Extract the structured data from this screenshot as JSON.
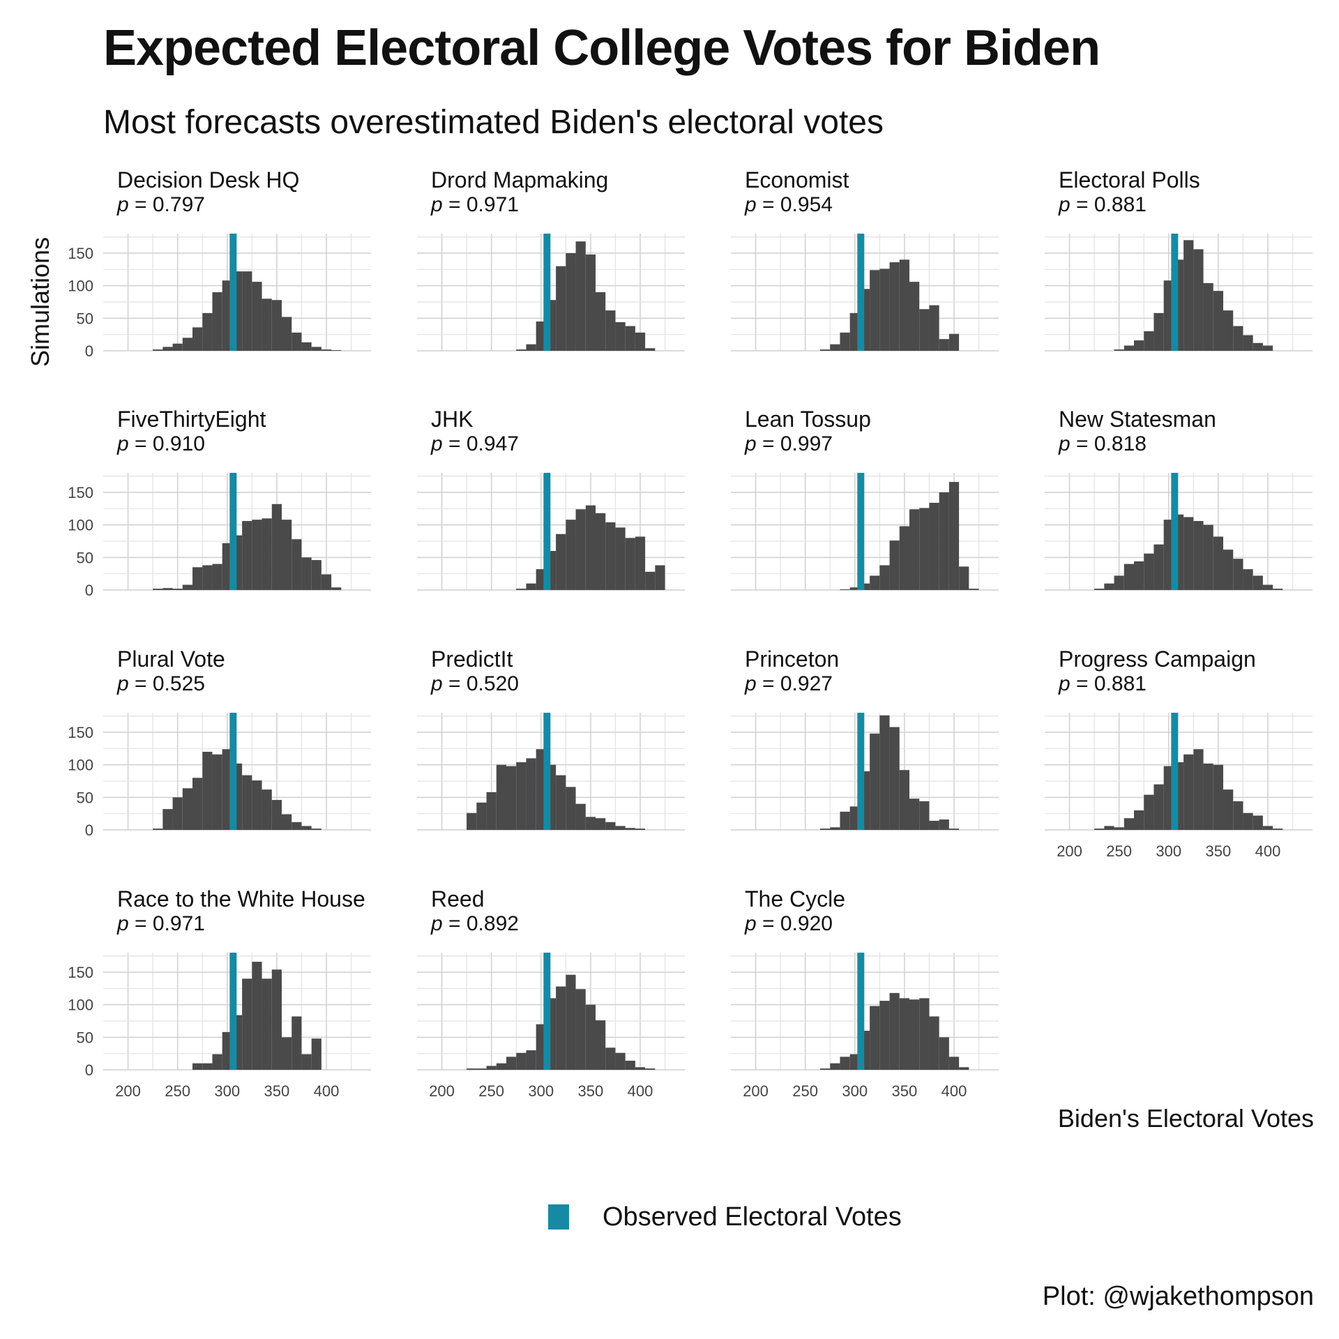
{
  "chart_data": {
    "type": "bar",
    "title": "Expected Electoral College Votes for Biden",
    "subtitle": "Most forecasts overestimated Biden's electoral votes",
    "xlabel": "Biden's Electoral Votes",
    "ylabel": "Simulations",
    "xlim": [
      175,
      445
    ],
    "ylim": [
      0,
      180
    ],
    "xticks": [
      200,
      250,
      300,
      350,
      400
    ],
    "yticks": [
      0,
      50,
      100,
      150
    ],
    "bin_width": 10,
    "bin_start": 225,
    "observed_value": 306,
    "grid": true,
    "legend": {
      "position": "bottom",
      "label": "Observed Electoral Votes",
      "color": "#168aa4"
    },
    "bar_color": "#4a4a4a",
    "caption": "Plot: @wjakethompson",
    "panels": [
      {
        "name": "Decision Desk HQ",
        "p_value": "0.797",
        "values": [
          2,
          6,
          11,
          20,
          36,
          58,
          90,
          108,
          122,
          122,
          106,
          80,
          78,
          52,
          28,
          13,
          6,
          2,
          1,
          0
        ]
      },
      {
        "name": "Drord Mapmaking",
        "p_value": "0.971",
        "values": [
          0,
          0,
          0,
          0,
          0,
          2,
          10,
          45,
          78,
          130,
          150,
          168,
          148,
          90,
          62,
          44,
          38,
          28,
          4,
          0
        ]
      },
      {
        "name": "Economist",
        "p_value": "0.954",
        "values": [
          0,
          0,
          0,
          0,
          2,
          10,
          28,
          58,
          95,
          124,
          126,
          136,
          140,
          106,
          64,
          70,
          18,
          26,
          0,
          0
        ]
      },
      {
        "name": "Electoral Polls",
        "p_value": "0.881",
        "values": [
          0,
          0,
          2,
          8,
          16,
          30,
          58,
          108,
          140,
          170,
          156,
          104,
          92,
          62,
          38,
          24,
          12,
          8,
          0,
          0
        ]
      },
      {
        "name": "FiveThirtyEight",
        "p_value": "0.910",
        "values": [
          2,
          3,
          2,
          8,
          35,
          38,
          40,
          72,
          84,
          106,
          108,
          110,
          132,
          108,
          78,
          50,
          46,
          24,
          4,
          0
        ]
      },
      {
        "name": "JHK",
        "p_value": "0.947",
        "values": [
          0,
          0,
          0,
          0,
          0,
          2,
          10,
          32,
          60,
          86,
          108,
          124,
          130,
          118,
          104,
          96,
          80,
          82,
          28,
          38
        ]
      },
      {
        "name": "Lean Tossup",
        "p_value": "0.997",
        "values": [
          0,
          0,
          0,
          0,
          0,
          0,
          1,
          4,
          10,
          22,
          38,
          76,
          98,
          124,
          126,
          134,
          150,
          166,
          36,
          2
        ]
      },
      {
        "name": "New Statesman",
        "p_value": "0.818",
        "values": [
          2,
          10,
          22,
          40,
          44,
          56,
          70,
          108,
          116,
          112,
          106,
          100,
          82,
          62,
          48,
          32,
          22,
          8,
          2,
          0
        ]
      },
      {
        "name": "Plural Vote",
        "p_value": "0.525",
        "values": [
          2,
          32,
          50,
          64,
          80,
          120,
          116,
          124,
          102,
          84,
          76,
          62,
          46,
          24,
          12,
          6,
          2,
          0,
          0,
          0
        ]
      },
      {
        "name": "PredictIt",
        "p_value": "0.520",
        "values": [
          26,
          42,
          58,
          100,
          98,
          104,
          110,
          124,
          100,
          84,
          66,
          40,
          20,
          18,
          12,
          6,
          3,
          2,
          0,
          0
        ]
      },
      {
        "name": "Princeton",
        "p_value": "0.927",
        "values": [
          0,
          0,
          0,
          0,
          2,
          4,
          28,
          36,
          90,
          148,
          176,
          158,
          92,
          48,
          44,
          14,
          16,
          2,
          0,
          0
        ]
      },
      {
        "name": "Progress Campaign",
        "p_value": "0.881",
        "values": [
          2,
          6,
          4,
          18,
          30,
          54,
          70,
          98,
          104,
          116,
          124,
          102,
          100,
          62,
          44,
          26,
          22,
          6,
          2,
          0
        ]
      },
      {
        "name": "Race to the White House",
        "p_value": "0.971",
        "values": [
          0,
          0,
          0,
          0,
          10,
          10,
          24,
          58,
          84,
          140,
          166,
          140,
          154,
          50,
          82,
          24,
          48,
          0,
          0,
          0
        ]
      },
      {
        "name": "Reed",
        "p_value": "0.892",
        "values": [
          2,
          2,
          6,
          10,
          20,
          26,
          30,
          70,
          110,
          128,
          146,
          124,
          100,
          76,
          34,
          26,
          14,
          4,
          2,
          0
        ]
      },
      {
        "name": "The Cycle",
        "p_value": "0.920",
        "values": [
          0,
          0,
          0,
          0,
          2,
          10,
          20,
          24,
          60,
          98,
          106,
          118,
          110,
          108,
          110,
          82,
          50,
          20,
          4,
          0
        ]
      }
    ]
  }
}
